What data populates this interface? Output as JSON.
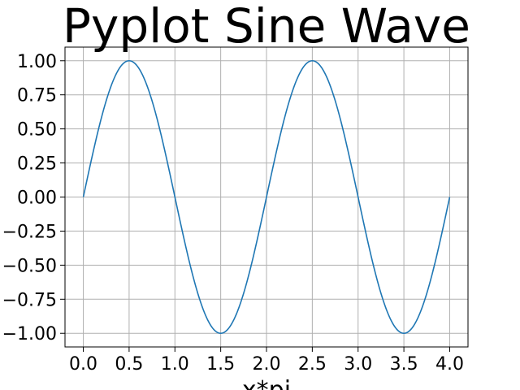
{
  "chart_data": {
    "type": "line",
    "title": "Pyplot Sine Wave",
    "xlabel": "x*pi",
    "ylabel": "",
    "function": "sin(pi*x)",
    "xlim": [
      -0.2,
      4.2
    ],
    "ylim": [
      -1.1,
      1.1
    ],
    "grid": true,
    "xticks": [
      "0.0",
      "0.5",
      "1.0",
      "1.5",
      "2.0",
      "2.5",
      "3.0",
      "3.5",
      "4.0"
    ],
    "yticks": [
      "1.00",
      "0.75",
      "0.50",
      "0.25",
      "0.00",
      "-0.25",
      "-0.50",
      "-0.75",
      "-1.00"
    ],
    "series": [
      {
        "color": "#1f77b4",
        "x": [
          0.0,
          0.25,
          0.5,
          0.75,
          1.0,
          1.25,
          1.5,
          1.75,
          2.0,
          2.25,
          2.5,
          2.75,
          3.0,
          3.25,
          3.5,
          3.75,
          4.0
        ],
        "y": [
          0.0,
          0.707,
          1.0,
          0.707,
          0.0,
          -0.707,
          -1.0,
          -0.707,
          0.0,
          0.707,
          1.0,
          0.707,
          0.0,
          -0.707,
          -1.0,
          -0.707,
          0.0
        ]
      }
    ]
  }
}
